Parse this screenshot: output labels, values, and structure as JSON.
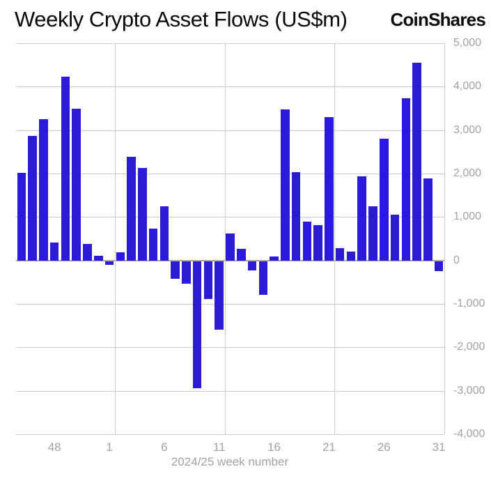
{
  "brand": {
    "logo_text": "CoinShares"
  },
  "chart_data": {
    "type": "bar",
    "title": "Weekly Crypto Asset Flows (US$m)",
    "xlabel": "2024/25 week number",
    "ylabel": "",
    "categories": [
      "45",
      "46",
      "47",
      "48",
      "49",
      "50",
      "51",
      "52",
      "1",
      "2",
      "3",
      "4",
      "5",
      "6",
      "7",
      "8",
      "9",
      "10",
      "11",
      "12",
      "13",
      "14",
      "15",
      "16",
      "17",
      "18",
      "19",
      "20",
      "21",
      "22",
      "23",
      "24",
      "25",
      "26",
      "27",
      "28",
      "29",
      "30",
      "31"
    ],
    "values": [
      2010,
      2860,
      3250,
      410,
      4230,
      3500,
      380,
      110,
      -80,
      180,
      2380,
      2130,
      740,
      1240,
      -410,
      -520,
      -2930,
      -870,
      -1570,
      620,
      270,
      -210,
      -780,
      90,
      3470,
      2040,
      900,
      810,
      3300,
      290,
      200,
      1930,
      1250,
      2810,
      1050,
      3730,
      4550,
      1880,
      -230
    ],
    "x_tick_labels": [
      "48",
      "1",
      "6",
      "11",
      "16",
      "21",
      "26",
      "31"
    ],
    "y_ticks": [
      {
        "v": 5000,
        "label": "5,000"
      },
      {
        "v": 4000,
        "label": "4,000"
      },
      {
        "v": 3000,
        "label": "3,000"
      },
      {
        "v": 2000,
        "label": "2,000"
      },
      {
        "v": 1000,
        "label": "1,000"
      },
      {
        "v": 0,
        "label": "0"
      },
      {
        "v": -1000,
        "label": "-1,000"
      },
      {
        "v": -2000,
        "label": "-2,000"
      },
      {
        "v": -3000,
        "label": "-3,000"
      },
      {
        "v": -4000,
        "label": "-4,000"
      }
    ],
    "ylim": [
      -4000,
      5000
    ],
    "grid": true,
    "x_gridline_weeks": [
      "1",
      "11",
      "21",
      "31"
    ],
    "legend": "none",
    "bar_color": "#2b1ad6",
    "gridline_color": "#cbcbcb",
    "tick_label_color": "#a2a2a2"
  }
}
